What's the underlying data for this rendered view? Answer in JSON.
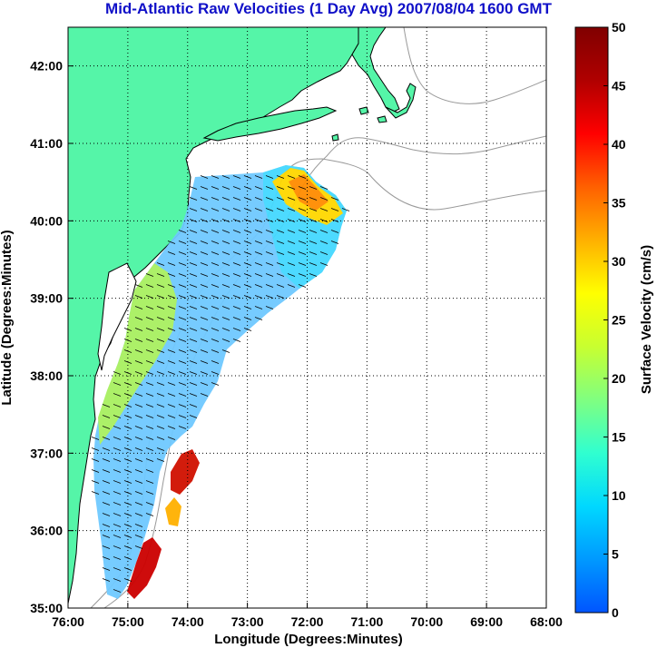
{
  "title": "Mid-Atlantic Raw Velocities (1 Day Avg) 2007/08/04 1600 GMT",
  "x_axis": {
    "label": "Longitude (Degrees:Minutes)",
    "ticks": [
      "76:00",
      "75:00",
      "74:00",
      "73:00",
      "72:00",
      "71:00",
      "70:00",
      "69:00",
      "68:00"
    ],
    "range": [
      -76,
      -68
    ]
  },
  "y_axis": {
    "label": "Latitude (Degrees:Minutes)",
    "ticks": [
      "35:00",
      "36:00",
      "37:00",
      "38:00",
      "39:00",
      "40:00",
      "41:00",
      "42:00"
    ],
    "range": [
      35,
      42.5
    ]
  },
  "colorbar": {
    "label": "Surface Velocity (cm/s)",
    "ticks": [
      "0",
      "5",
      "10",
      "15",
      "20",
      "25",
      "30",
      "35",
      "40",
      "45",
      "50"
    ],
    "range": [
      0,
      50
    ],
    "colors": [
      "#0055ff",
      "#0099ff",
      "#00d8ff",
      "#30ffd0",
      "#80ff80",
      "#c8ff30",
      "#ffff00",
      "#ffb000",
      "#ff6000",
      "#ff0000",
      "#b00000",
      "#800000"
    ]
  },
  "colors": {
    "land": "#55f5a8",
    "coast": "#000000",
    "bathymetry": "#999999",
    "grid": "#000000",
    "title": "#1010c8"
  },
  "grid": true
}
